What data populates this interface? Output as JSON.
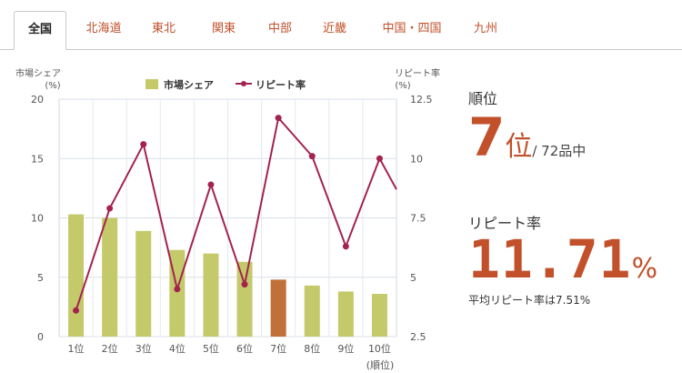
{
  "tabs": [
    {
      "label": "全国",
      "active": true
    },
    {
      "label": "北海道",
      "active": false
    },
    {
      "label": "東北",
      "active": false
    },
    {
      "label": "関東",
      "active": false
    },
    {
      "label": "中部",
      "active": false
    },
    {
      "label": "近畿",
      "active": false
    },
    {
      "label": "中国・四国",
      "active": false
    },
    {
      "label": "九州",
      "active": false
    }
  ],
  "colors": {
    "accent": "#c2512b",
    "bar": "#c4c96a",
    "bar_highlight": "#c07038",
    "line": "#a3234e"
  },
  "summary": {
    "rank_label": "順位",
    "rank_value": "7",
    "rank_unit": "位",
    "rank_total": "/ 72品中",
    "repeat_label": "リピート率",
    "repeat_value": "11.71",
    "repeat_unit": "%",
    "average_text": "平均リピート率は7.51%"
  },
  "chart_data": {
    "type": "bar",
    "categories": [
      "1位",
      "2位",
      "3位",
      "4位",
      "5位",
      "6位",
      "7位",
      "8位",
      "9位",
      "10位"
    ],
    "x_axis_unit": "(順位)",
    "highlight_index": 6,
    "series": [
      {
        "name": "市場シェア",
        "type": "bar",
        "axis": "left",
        "values": [
          10.3,
          10.0,
          8.9,
          7.3,
          7.0,
          6.3,
          4.8,
          4.3,
          3.8,
          3.6
        ]
      },
      {
        "name": "リピート率",
        "type": "line",
        "axis": "right",
        "values": [
          3.6,
          7.9,
          10.6,
          4.5,
          8.9,
          4.7,
          11.71,
          10.1,
          6.3,
          10.0
        ]
      }
    ],
    "y_left": {
      "label_line1": "市場シェア",
      "label_line2": "(%)",
      "ylim": [
        0,
        20
      ],
      "ticks": [
        "0",
        "5",
        "10",
        "15",
        "20"
      ]
    },
    "y_right": {
      "label_line1": "リピート率",
      "label_line2": "(%)",
      "ylim": [
        2.5,
        12.5
      ],
      "ticks": [
        "2.5",
        "5",
        "7.5",
        "10",
        "12.5"
      ]
    },
    "legend_position": "top",
    "grid": true,
    "line_exit_value": 8.7
  }
}
